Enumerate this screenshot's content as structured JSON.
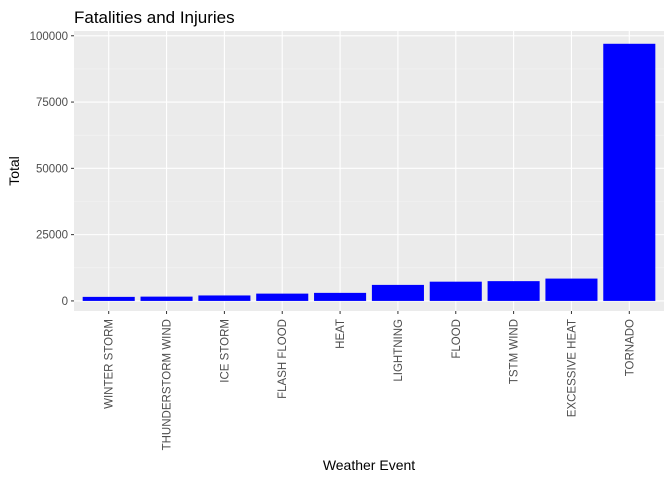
{
  "chart_data": {
    "type": "bar",
    "title": "Fatalities and Injuries",
    "xlabel": "Weather Event",
    "ylabel": "Total",
    "categories": [
      "WINTER STORM",
      "THUNDERSTORM WIND",
      "ICE STORM",
      "FLASH FLOOD",
      "HEAT",
      "LIGHTNING",
      "FLOOD",
      "TSTM WIND",
      "EXCESSIVE HEAT",
      "TORNADO"
    ],
    "values": [
      1527,
      1621,
      2064,
      2755,
      3037,
      6046,
      7259,
      7461,
      8428,
      96979
    ],
    "ylim": [
      -3800,
      101800
    ],
    "yticks": [
      0,
      25000,
      50000,
      75000,
      100000
    ],
    "grid": true,
    "legend": "none",
    "colors": {
      "bar": "#0000FF",
      "panel": "#EBEBEB",
      "grid_major": "#FFFFFF",
      "grid_minor": "#F4F4F4",
      "axis_text": "#4D4D4D",
      "tick": "#333333",
      "title": "#000000"
    }
  }
}
